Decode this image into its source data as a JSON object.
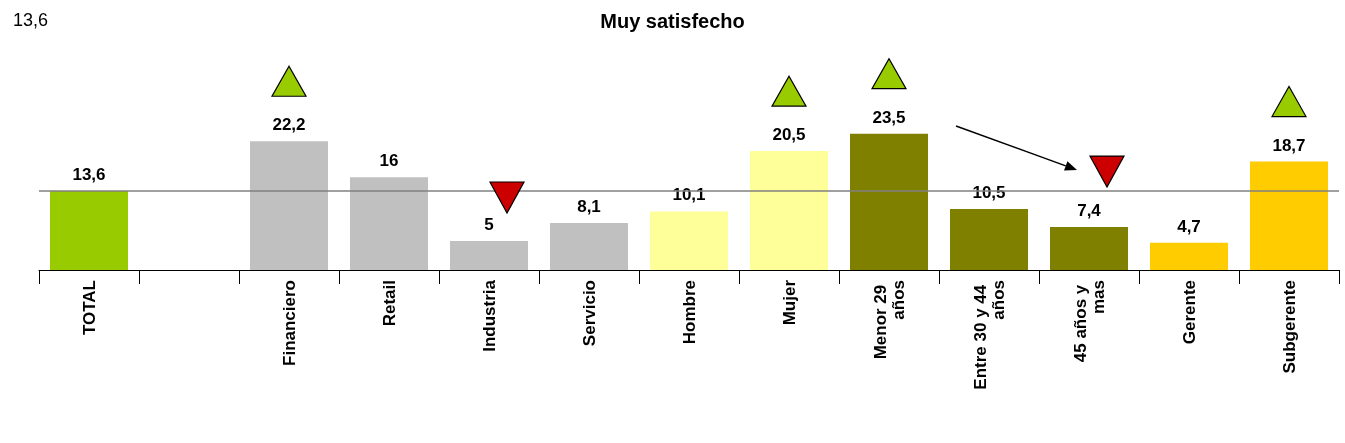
{
  "chart_data": {
    "type": "bar",
    "title": "Muy satisfecho",
    "categories": [
      "TOTAL",
      null,
      "Financiero",
      "Retail",
      "Industria",
      "Servicio",
      "Hombre",
      "Mujer",
      "Menor 29 años",
      "Entre 30 y 44 años",
      "45 años y mas",
      "Gerente",
      "Subgerente"
    ],
    "values": [
      13.6,
      null,
      22.2,
      16,
      5,
      8.1,
      10.1,
      20.5,
      23.5,
      10.5,
      7.4,
      4.7,
      18.7
    ],
    "value_labels": [
      "13,6",
      null,
      "22,2",
      "16",
      "5",
      "8,1",
      "10,1",
      "20,5",
      "23,5",
      "10,5",
      "7,4",
      "4,7",
      "18,7"
    ],
    "colors": [
      "#99cc00",
      "#c0c0c0",
      "#c0c0c0",
      "#c0c0c0",
      "#c0c0c0",
      "#c0c0c0",
      "#ffff99",
      "#ffff99",
      "#808000",
      "#808000",
      "#808000",
      "#ffcc00",
      "#ffcc00"
    ],
    "ref_lines": [
      {
        "axis": "y",
        "value": 13.6,
        "color": "#808080"
      }
    ],
    "annotations": [
      "13,6"
    ]
  }
}
